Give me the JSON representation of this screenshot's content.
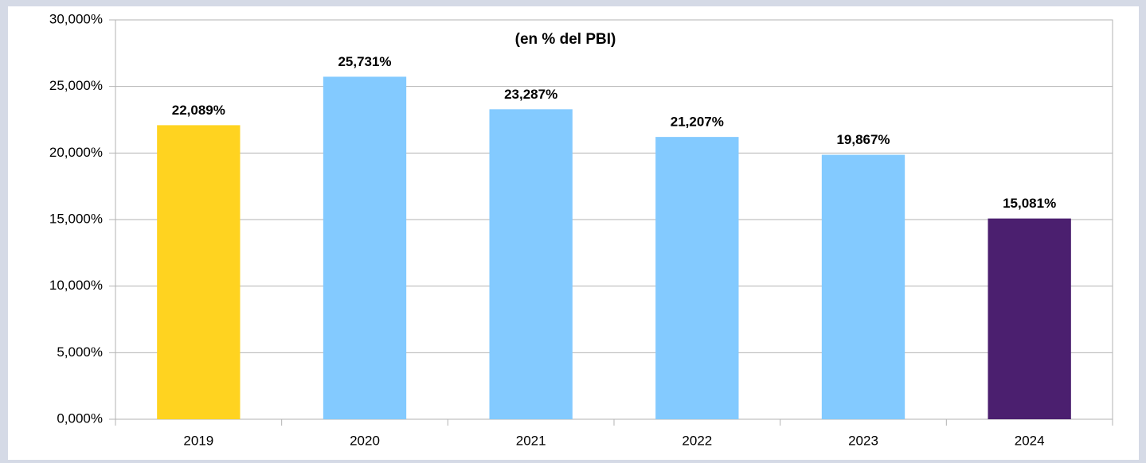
{
  "chart_data": {
    "type": "bar",
    "title": "(en % del PBI)",
    "categories": [
      "2019",
      "2020",
      "2021",
      "2022",
      "2023",
      "2024"
    ],
    "values": [
      22.089,
      25.731,
      23.287,
      21.207,
      19.867,
      15.081
    ],
    "value_labels": [
      "22,089%",
      "25,731%",
      "23,287%",
      "21,207%",
      "19,867%",
      "15,081%"
    ],
    "colors": [
      "#ffd320",
      "#83caff",
      "#83caff",
      "#83caff",
      "#83caff",
      "#4b1f6f"
    ],
    "ylim": [
      0,
      30
    ],
    "yticks": [
      {
        "value": 0,
        "label": "0,000%"
      },
      {
        "value": 5,
        "label": "5,000%"
      },
      {
        "value": 10,
        "label": "10,000%"
      },
      {
        "value": 15,
        "label": "15,000%"
      },
      {
        "value": 20,
        "label": "20,000%"
      },
      {
        "value": 25,
        "label": "25,000%"
      },
      {
        "value": 30,
        "label": "30,000%"
      }
    ],
    "grid": true
  }
}
